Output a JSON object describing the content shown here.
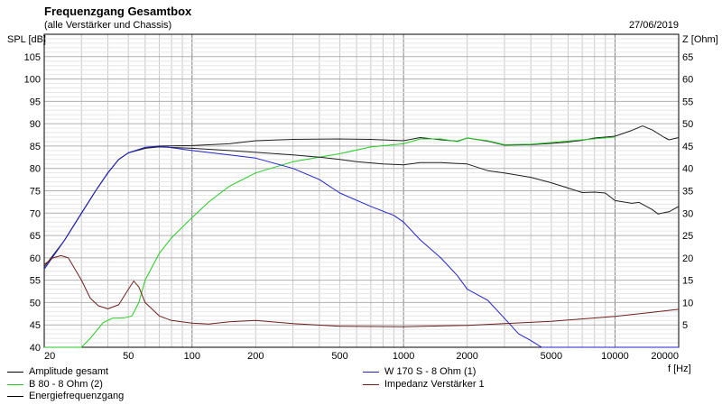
{
  "header": {
    "title": "Frequenzgang Gesamtbox",
    "subtitle": "(alle Verstärker und Chassis)",
    "date": "27/06/2019"
  },
  "colors": {
    "black": "#202020",
    "green": "#22cc22",
    "blue": "#2222cc",
    "brown": "#702020",
    "grid": "#c8c8c8",
    "grid_major": "#808080"
  },
  "chart_data": {
    "type": "line",
    "title": "Frequenzgang Gesamtbox",
    "subtitle": "(alle Verstärker und Chassis)",
    "xlabel": "f [Hz]",
    "ylabel": "SPL [dB]",
    "y2label": "Z [Ohm]",
    "xscale": "log",
    "xlim": [
      20,
      20000
    ],
    "ylim": [
      40,
      110
    ],
    "y2lim": [
      0,
      70
    ],
    "grid": true,
    "x_ticks": [
      "20",
      "50",
      "100",
      "200",
      "500",
      "1000",
      "2000",
      "5000",
      "10000",
      "20000"
    ],
    "y_ticks": [
      "40",
      "45",
      "50",
      "55",
      "60",
      "65",
      "70",
      "75",
      "80",
      "85",
      "90",
      "95",
      "100",
      "105"
    ],
    "y2_ticks": [
      "5",
      "10",
      "15",
      "20",
      "25",
      "30",
      "35",
      "40",
      "45",
      "50",
      "55",
      "60",
      "65"
    ],
    "legend_position": "bottom",
    "series": [
      {
        "name": "Amplitude gesamt",
        "color": "#202020",
        "points": [
          [
            20,
            58
          ],
          [
            25,
            64
          ],
          [
            30,
            70
          ],
          [
            35,
            75
          ],
          [
            40,
            79
          ],
          [
            45,
            82
          ],
          [
            50,
            83.5
          ],
          [
            60,
            84.5
          ],
          [
            70,
            85
          ],
          [
            100,
            85.1
          ],
          [
            150,
            85.5
          ],
          [
            200,
            86.2
          ],
          [
            300,
            86.5
          ],
          [
            500,
            86.6
          ],
          [
            700,
            86.5
          ],
          [
            1000,
            86.2
          ],
          [
            1200,
            86.9
          ],
          [
            1500,
            86.4
          ],
          [
            1800,
            86.1
          ],
          [
            2000,
            86.8
          ],
          [
            2500,
            86.1
          ],
          [
            3000,
            85.2
          ],
          [
            4000,
            85.3
          ],
          [
            5000,
            85.6
          ],
          [
            6000,
            85.9
          ],
          [
            7000,
            86.3
          ],
          [
            8000,
            86.8
          ],
          [
            10000,
            87.2
          ],
          [
            12000,
            88.5
          ],
          [
            13500,
            89.5
          ],
          [
            15000,
            88.6
          ],
          [
            17000,
            87
          ],
          [
            18000,
            86.4
          ],
          [
            20000,
            86.9
          ]
        ]
      },
      {
        "name": "B 80 - 8 Ohm (2)",
        "color": "#22cc22",
        "points": [
          [
            20,
            40
          ],
          [
            30,
            40
          ],
          [
            33,
            42
          ],
          [
            38,
            45.5
          ],
          [
            42,
            46.5
          ],
          [
            48,
            46.6
          ],
          [
            52,
            47
          ],
          [
            56,
            50
          ],
          [
            60,
            55
          ],
          [
            70,
            61
          ],
          [
            80,
            64.5
          ],
          [
            100,
            69
          ],
          [
            120,
            72.5
          ],
          [
            150,
            76
          ],
          [
            200,
            79
          ],
          [
            300,
            81.5
          ],
          [
            500,
            83.3
          ],
          [
            700,
            84.8
          ],
          [
            1000,
            85.5
          ],
          [
            1200,
            86.6
          ],
          [
            1500,
            86.6
          ],
          [
            1800,
            86
          ],
          [
            2000,
            86.8
          ],
          [
            2500,
            86.2
          ],
          [
            3000,
            85.3
          ],
          [
            4000,
            85.4
          ],
          [
            5000,
            85.8
          ],
          [
            7000,
            86.4
          ],
          [
            10000,
            87
          ]
        ]
      },
      {
        "name": "Energiefrequenzgang",
        "color": "#202020",
        "points": [
          [
            20,
            57.5
          ],
          [
            25,
            64
          ],
          [
            30,
            70
          ],
          [
            35,
            75
          ],
          [
            40,
            79
          ],
          [
            45,
            82
          ],
          [
            50,
            83.5
          ],
          [
            60,
            84.5
          ],
          [
            70,
            84.8
          ],
          [
            100,
            84.5
          ],
          [
            150,
            84
          ],
          [
            200,
            83.6
          ],
          [
            300,
            83
          ],
          [
            400,
            82.5
          ],
          [
            500,
            82
          ],
          [
            600,
            81.5
          ],
          [
            800,
            81
          ],
          [
            1000,
            80.8
          ],
          [
            1200,
            81.3
          ],
          [
            1500,
            81.3
          ],
          [
            2000,
            81
          ],
          [
            2500,
            79.5
          ],
          [
            3000,
            79
          ],
          [
            4000,
            78
          ],
          [
            5000,
            76.8
          ],
          [
            6000,
            75.6
          ],
          [
            7000,
            74.6
          ],
          [
            8000,
            74.7
          ],
          [
            9000,
            74.5
          ],
          [
            10000,
            72.8
          ],
          [
            12000,
            72.2
          ],
          [
            13000,
            72.4
          ],
          [
            15000,
            70.8
          ],
          [
            16000,
            69.8
          ],
          [
            17000,
            70.1
          ],
          [
            18000,
            70.3
          ],
          [
            20000,
            71.5
          ]
        ]
      },
      {
        "name": "W 170 S - 8 Ohm (1)",
        "color": "#2222cc",
        "points": [
          [
            20,
            57.5
          ],
          [
            25,
            64
          ],
          [
            30,
            70
          ],
          [
            35,
            75
          ],
          [
            40,
            79
          ],
          [
            45,
            82
          ],
          [
            50,
            83.5
          ],
          [
            60,
            84.7
          ],
          [
            70,
            85
          ],
          [
            100,
            84
          ],
          [
            150,
            83
          ],
          [
            200,
            82.3
          ],
          [
            300,
            80
          ],
          [
            400,
            77.5
          ],
          [
            500,
            74.5
          ],
          [
            700,
            71.5
          ],
          [
            900,
            69.5
          ],
          [
            1000,
            68
          ],
          [
            1200,
            64
          ],
          [
            1500,
            60
          ],
          [
            1800,
            56
          ],
          [
            2000,
            53
          ],
          [
            2500,
            50.5
          ],
          [
            3000,
            46.5
          ],
          [
            3500,
            43
          ],
          [
            4000,
            41.5
          ],
          [
            4500,
            40
          ],
          [
            20000,
            40
          ]
        ]
      },
      {
        "name": "Impedanz Verstärker 1",
        "color": "#702020",
        "axis": "right",
        "points": [
          [
            20,
            18.5
          ],
          [
            22,
            20
          ],
          [
            24,
            20.5
          ],
          [
            26,
            20
          ],
          [
            30,
            15
          ],
          [
            33,
            11
          ],
          [
            36,
            9.3
          ],
          [
            40,
            8.6
          ],
          [
            45,
            9.5
          ],
          [
            50,
            13
          ],
          [
            53,
            14.8
          ],
          [
            56,
            13.5
          ],
          [
            60,
            10
          ],
          [
            70,
            7
          ],
          [
            80,
            6
          ],
          [
            100,
            5.4
          ],
          [
            120,
            5.2
          ],
          [
            150,
            5.7
          ],
          [
            200,
            6
          ],
          [
            300,
            5.3
          ],
          [
            500,
            4.7
          ],
          [
            1000,
            4.6
          ],
          [
            2000,
            4.9
          ],
          [
            3000,
            5.3
          ],
          [
            5000,
            5.8
          ],
          [
            10000,
            6.9
          ],
          [
            15000,
            7.8
          ],
          [
            20000,
            8.5
          ]
        ]
      }
    ]
  }
}
